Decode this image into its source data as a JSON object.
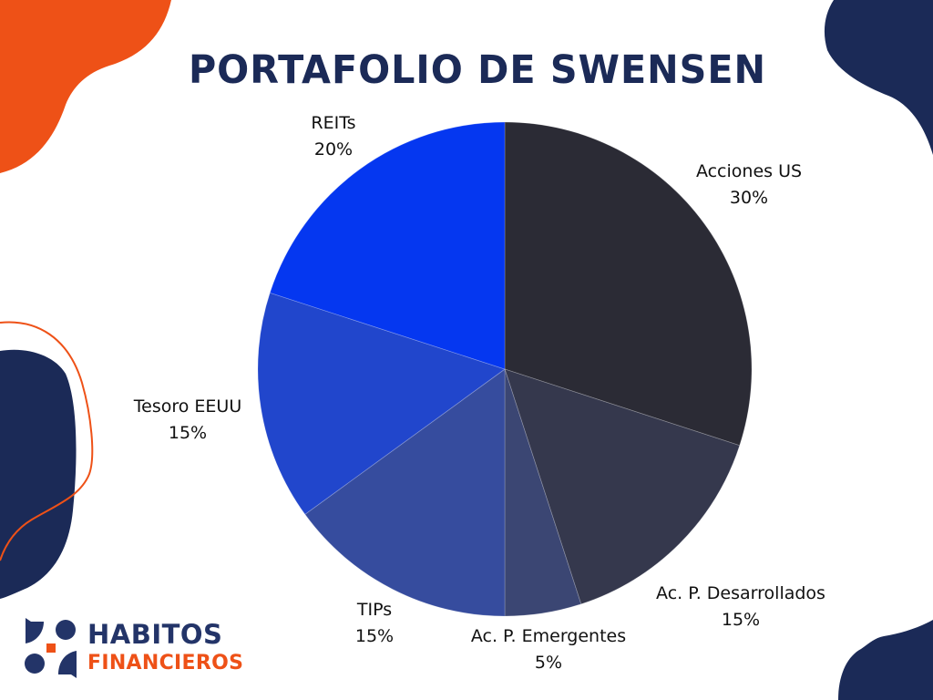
{
  "title": "PORTAFOLIO DE SWENSEN",
  "brand": {
    "line1": "HABITOS",
    "line2": "FINANCIEROS",
    "primary_color": "#233468",
    "accent_color": "#ee5117"
  },
  "theme": {
    "navy": "#1b2a57",
    "orange": "#ee5117",
    "background": "#ffffff"
  },
  "labels": [
    {
      "name": "Acciones US",
      "pct": "30%"
    },
    {
      "name": "Ac. P. Desarrollados",
      "pct": "15%"
    },
    {
      "name": "Ac. P. Emergentes",
      "pct": "5%"
    },
    {
      "name": "TIPs",
      "pct": "15%"
    },
    {
      "name": "Tesoro EEUU",
      "pct": "15%"
    },
    {
      "name": "REITs",
      "pct": "20%"
    }
  ],
  "chart_data": {
    "type": "pie",
    "title": "PORTAFOLIO DE SWENSEN",
    "categories": [
      "Acciones US",
      "Ac. P. Desarrollados",
      "Ac. P. Emergentes",
      "TIPs",
      "Tesoro EEUU",
      "REITs"
    ],
    "values": [
      30,
      15,
      5,
      15,
      15,
      20
    ],
    "unit": "%",
    "colors": [
      "#2b2b35",
      "#35384d",
      "#3b4673",
      "#364c9e",
      "#2146cc",
      "#0537f0"
    ],
    "start_angle": "12 o'clock",
    "direction": "clockwise",
    "legend": "none (outside data labels)",
    "data_labels": [
      "Acciones US 30%",
      "Ac. P. Desarrollados 15%",
      "Ac. P. Emergentes 5%",
      "TIPs 15%",
      "Tesoro EEUU 15%",
      "REITs 20%"
    ]
  }
}
